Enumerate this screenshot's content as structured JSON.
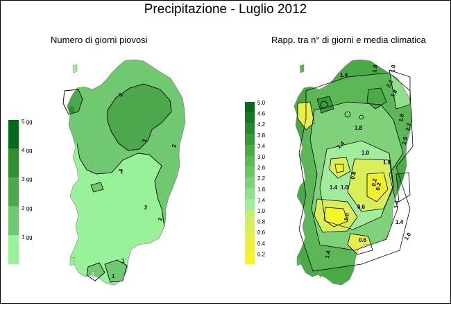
{
  "title": "Precipitazione - Luglio 2012",
  "maps": [
    {
      "id": "left",
      "subtitle": "Numero di giorni piovosi",
      "legend": {
        "labels": [
          "5 gg",
          "4 gg",
          "3 gg",
          "2 gg",
          "1 gg"
        ],
        "colors": [
          "#006b1a",
          "#2f8f2f",
          "#4da84d",
          "#70c870",
          "#99f299"
        ]
      },
      "zone_colors": [
        "#99f299",
        "#70c870",
        "#4da84d"
      ],
      "contour_labels": [
        "2",
        "1",
        "2",
        "1",
        "1",
        "2",
        "2",
        "2",
        "1"
      ]
    },
    {
      "id": "right",
      "subtitle": "Rapp. tra n° di giorni e media climatica",
      "legend": {
        "labels": [
          "5.0",
          "4.6",
          "4.2",
          "3.8",
          "3.4",
          "3.0",
          "2.6",
          "2.2",
          "1.8",
          "1.4",
          "1.0",
          "0.8",
          "0.6",
          "0.4",
          "0.2"
        ],
        "colors": [
          "#006b1a",
          "#137a22",
          "#248a2b",
          "#379a36",
          "#4aaa45",
          "#5cb856",
          "#6cc465",
          "#7fd27a",
          "#91e08e",
          "#a2ec9e",
          "#c9ee72",
          "#d8ef5a",
          "#e6f048",
          "#f0f030",
          "#f5f52a"
        ]
      },
      "contour_labels": [
        "1.8",
        "1.0",
        "1.4",
        "1.8",
        "2.2",
        "1.8",
        "1.4",
        "2.6",
        "1.0",
        "1.4",
        "0.6",
        "1.0",
        "0.6",
        "0.2",
        "1.8",
        "2.2",
        "1.0",
        "0.2",
        "1.4",
        "0.6",
        "1.0",
        "1.4",
        "1.0",
        "1.4"
      ]
    }
  ]
}
